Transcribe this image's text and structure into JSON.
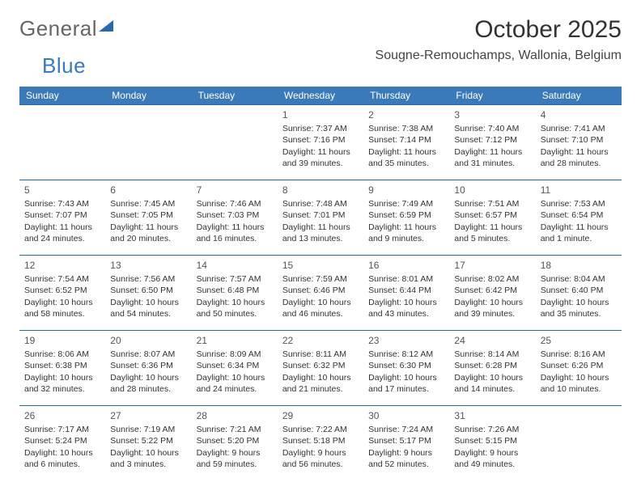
{
  "logo": {
    "word1": "General",
    "word2": "Blue"
  },
  "title": "October 2025",
  "location": "Sougne-Remouchamps, Wallonia, Belgium",
  "colors": {
    "header_bg": "#3a7ab8",
    "rule": "#2a6aa8",
    "text": "#333333",
    "background": "#ffffff"
  },
  "day_labels": [
    "Sunday",
    "Monday",
    "Tuesday",
    "Wednesday",
    "Thursday",
    "Friday",
    "Saturday"
  ],
  "weeks": [
    [
      null,
      null,
      null,
      {
        "n": "1",
        "sunrise": "7:37 AM",
        "sunset": "7:16 PM",
        "daylight": "11 hours and 39 minutes."
      },
      {
        "n": "2",
        "sunrise": "7:38 AM",
        "sunset": "7:14 PM",
        "daylight": "11 hours and 35 minutes."
      },
      {
        "n": "3",
        "sunrise": "7:40 AM",
        "sunset": "7:12 PM",
        "daylight": "11 hours and 31 minutes."
      },
      {
        "n": "4",
        "sunrise": "7:41 AM",
        "sunset": "7:10 PM",
        "daylight": "11 hours and 28 minutes."
      }
    ],
    [
      {
        "n": "5",
        "sunrise": "7:43 AM",
        "sunset": "7:07 PM",
        "daylight": "11 hours and 24 minutes."
      },
      {
        "n": "6",
        "sunrise": "7:45 AM",
        "sunset": "7:05 PM",
        "daylight": "11 hours and 20 minutes."
      },
      {
        "n": "7",
        "sunrise": "7:46 AM",
        "sunset": "7:03 PM",
        "daylight": "11 hours and 16 minutes."
      },
      {
        "n": "8",
        "sunrise": "7:48 AM",
        "sunset": "7:01 PM",
        "daylight": "11 hours and 13 minutes."
      },
      {
        "n": "9",
        "sunrise": "7:49 AM",
        "sunset": "6:59 PM",
        "daylight": "11 hours and 9 minutes."
      },
      {
        "n": "10",
        "sunrise": "7:51 AM",
        "sunset": "6:57 PM",
        "daylight": "11 hours and 5 minutes."
      },
      {
        "n": "11",
        "sunrise": "7:53 AM",
        "sunset": "6:54 PM",
        "daylight": "11 hours and 1 minute."
      }
    ],
    [
      {
        "n": "12",
        "sunrise": "7:54 AM",
        "sunset": "6:52 PM",
        "daylight": "10 hours and 58 minutes."
      },
      {
        "n": "13",
        "sunrise": "7:56 AM",
        "sunset": "6:50 PM",
        "daylight": "10 hours and 54 minutes."
      },
      {
        "n": "14",
        "sunrise": "7:57 AM",
        "sunset": "6:48 PM",
        "daylight": "10 hours and 50 minutes."
      },
      {
        "n": "15",
        "sunrise": "7:59 AM",
        "sunset": "6:46 PM",
        "daylight": "10 hours and 46 minutes."
      },
      {
        "n": "16",
        "sunrise": "8:01 AM",
        "sunset": "6:44 PM",
        "daylight": "10 hours and 43 minutes."
      },
      {
        "n": "17",
        "sunrise": "8:02 AM",
        "sunset": "6:42 PM",
        "daylight": "10 hours and 39 minutes."
      },
      {
        "n": "18",
        "sunrise": "8:04 AM",
        "sunset": "6:40 PM",
        "daylight": "10 hours and 35 minutes."
      }
    ],
    [
      {
        "n": "19",
        "sunrise": "8:06 AM",
        "sunset": "6:38 PM",
        "daylight": "10 hours and 32 minutes."
      },
      {
        "n": "20",
        "sunrise": "8:07 AM",
        "sunset": "6:36 PM",
        "daylight": "10 hours and 28 minutes."
      },
      {
        "n": "21",
        "sunrise": "8:09 AM",
        "sunset": "6:34 PM",
        "daylight": "10 hours and 24 minutes."
      },
      {
        "n": "22",
        "sunrise": "8:11 AM",
        "sunset": "6:32 PM",
        "daylight": "10 hours and 21 minutes."
      },
      {
        "n": "23",
        "sunrise": "8:12 AM",
        "sunset": "6:30 PM",
        "daylight": "10 hours and 17 minutes."
      },
      {
        "n": "24",
        "sunrise": "8:14 AM",
        "sunset": "6:28 PM",
        "daylight": "10 hours and 14 minutes."
      },
      {
        "n": "25",
        "sunrise": "8:16 AM",
        "sunset": "6:26 PM",
        "daylight": "10 hours and 10 minutes."
      }
    ],
    [
      {
        "n": "26",
        "sunrise": "7:17 AM",
        "sunset": "5:24 PM",
        "daylight": "10 hours and 6 minutes."
      },
      {
        "n": "27",
        "sunrise": "7:19 AM",
        "sunset": "5:22 PM",
        "daylight": "10 hours and 3 minutes."
      },
      {
        "n": "28",
        "sunrise": "7:21 AM",
        "sunset": "5:20 PM",
        "daylight": "9 hours and 59 minutes."
      },
      {
        "n": "29",
        "sunrise": "7:22 AM",
        "sunset": "5:18 PM",
        "daylight": "9 hours and 56 minutes."
      },
      {
        "n": "30",
        "sunrise": "7:24 AM",
        "sunset": "5:17 PM",
        "daylight": "9 hours and 52 minutes."
      },
      {
        "n": "31",
        "sunrise": "7:26 AM",
        "sunset": "5:15 PM",
        "daylight": "9 hours and 49 minutes."
      },
      null
    ]
  ],
  "labels": {
    "sunrise": "Sunrise:",
    "sunset": "Sunset:",
    "daylight": "Daylight:"
  }
}
